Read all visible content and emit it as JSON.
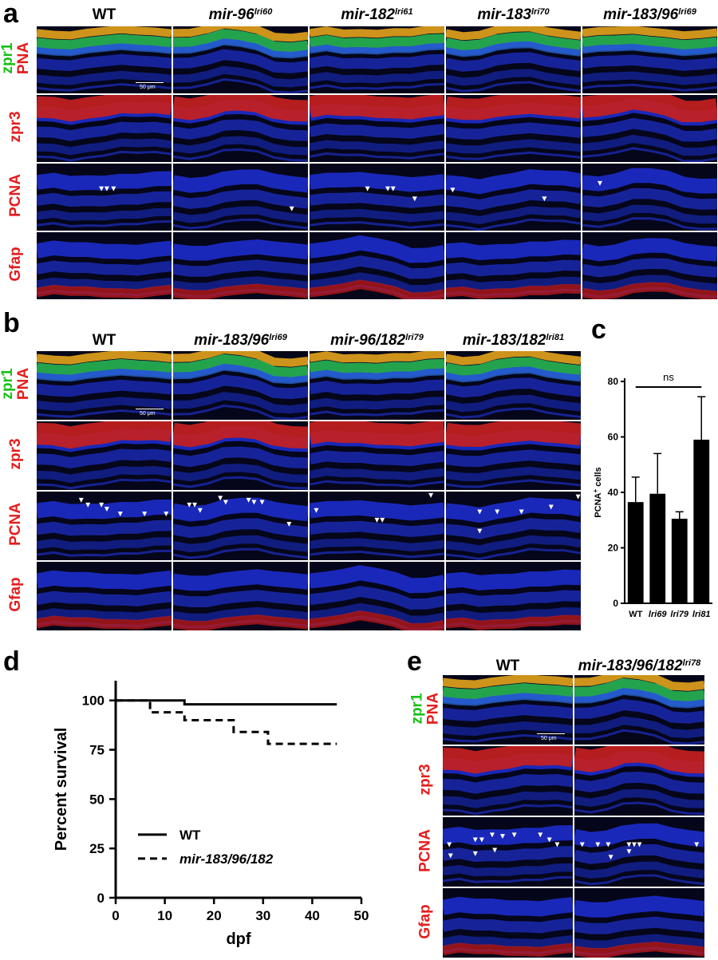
{
  "panel_a": {
    "letter": "a",
    "columns": [
      {
        "name": "WT",
        "sup": ""
      },
      {
        "name": "mir-96",
        "sup": "lri60"
      },
      {
        "name": "mir-182",
        "sup": "lri61"
      },
      {
        "name": "mir-183",
        "sup": "lri70"
      },
      {
        "name": "mir-183/96",
        "sup": "lri69"
      }
    ],
    "rows": [
      {
        "green": "zpr1",
        "red": "PNA"
      },
      {
        "green": "",
        "red": "zpr3"
      },
      {
        "green": "",
        "red": "PCNA"
      },
      {
        "green": "",
        "red": "Gfap"
      }
    ],
    "scale_label": "50 μm"
  },
  "panel_b": {
    "letter": "b",
    "columns": [
      {
        "name": "WT",
        "sup": ""
      },
      {
        "name": "mir-183/96",
        "sup": "lri69"
      },
      {
        "name": "mir-96/182",
        "sup": "lri79"
      },
      {
        "name": "mir-183/182",
        "sup": "lri81"
      }
    ],
    "rows": [
      {
        "green": "zpr1",
        "red": "PNA"
      },
      {
        "green": "",
        "red": "zpr3"
      },
      {
        "green": "",
        "red": "PCNA"
      },
      {
        "green": "",
        "red": "Gfap"
      }
    ],
    "scale_label": "50 μm"
  },
  "panel_e": {
    "letter": "e",
    "columns": [
      {
        "name": "WT",
        "sup": ""
      },
      {
        "name": "mir-183/96/182",
        "sup": "lri78"
      }
    ],
    "rows": [
      {
        "green": "zpr1",
        "red": "PNA"
      },
      {
        "green": "",
        "red": "zpr3"
      },
      {
        "green": "",
        "red": "PCNA"
      },
      {
        "green": "",
        "red": "Gfap"
      }
    ],
    "scale_label": "50 μm"
  },
  "chart_data": [
    {
      "panel": "c",
      "type": "bar",
      "categories": [
        "WT",
        "lri69",
        "lri79",
        "lri81"
      ],
      "values": [
        36.5,
        39.5,
        30.5,
        59
      ],
      "errors": [
        9,
        14.5,
        2.5,
        15.5
      ],
      "title": "",
      "xlabel": "",
      "ylabel": "PCNA+ cells",
      "ylabel_main": "PCNA",
      "ylabel_sup": "+",
      "ylabel_rest": " cells",
      "ylim": [
        0,
        80
      ],
      "yticks": [
        0,
        20,
        40,
        60,
        80
      ],
      "annotation": "ns",
      "bar_color": "#000000"
    },
    {
      "panel": "d",
      "type": "line",
      "title": "",
      "xlabel": "dpf",
      "ylabel": "Percent survival",
      "xlim": [
        0,
        50
      ],
      "ylim": [
        0,
        110
      ],
      "xticks": [
        0,
        10,
        20,
        30,
        40,
        50
      ],
      "yticks": [
        0,
        25,
        50,
        75,
        100
      ],
      "legend_placement": "bottom-center",
      "series": [
        {
          "name": "WT",
          "style": "solid",
          "x": [
            0,
            14,
            14,
            45
          ],
          "y": [
            100,
            100,
            98,
            98
          ]
        },
        {
          "name": "mir-183/96/182",
          "style": "dashed",
          "x": [
            0,
            7,
            7,
            14,
            14,
            24,
            24,
            31,
            31,
            45
          ],
          "y": [
            100,
            100,
            94,
            94,
            90,
            90,
            84,
            84,
            78,
            78
          ]
        }
      ]
    }
  ],
  "letters": {
    "c": "c",
    "d": "d"
  }
}
